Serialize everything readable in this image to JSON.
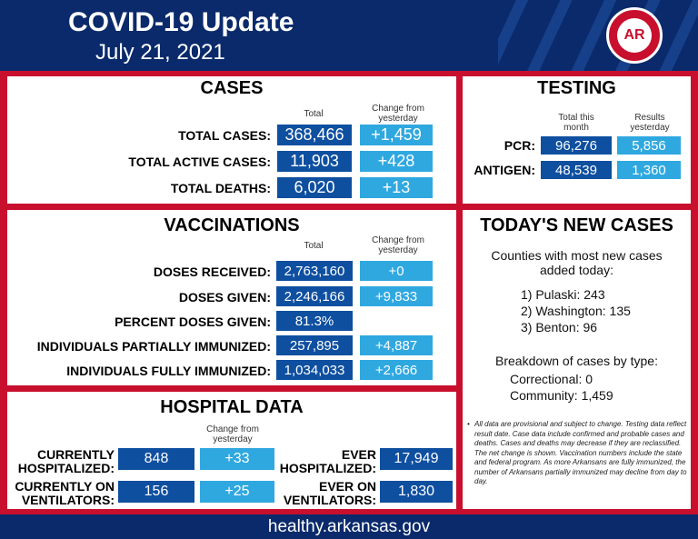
{
  "header": {
    "title": "COVID-19 Update",
    "date": "July 21, 2021",
    "logo_text": "AR"
  },
  "cases": {
    "heading": "CASES",
    "col_total": "Total",
    "col_change": "Change from yesterday",
    "rows": [
      {
        "label": "TOTAL CASES:",
        "total": "368,466",
        "change": "+1,459"
      },
      {
        "label": "TOTAL ACTIVE CASES:",
        "total": "11,903",
        "change": "+428"
      },
      {
        "label": "TOTAL DEATHS:",
        "total": "6,020",
        "change": "+13"
      }
    ]
  },
  "testing": {
    "heading": "TESTING",
    "col_total": "Total this month",
    "col_results": "Results yesterday",
    "rows": [
      {
        "label": "PCR:",
        "total": "96,276",
        "results": "5,856"
      },
      {
        "label": "ANTIGEN:",
        "total": "48,539",
        "results": "1,360"
      }
    ]
  },
  "vaccinations": {
    "heading": "VACCINATIONS",
    "col_total": "Total",
    "col_change": "Change from yesterday",
    "rows": [
      {
        "label": "DOSES RECEIVED:",
        "total": "2,763,160",
        "change": "+0"
      },
      {
        "label": "DOSES GIVEN:",
        "total": "2,246,166",
        "change": "+9,833"
      },
      {
        "label": "PERCENT DOSES GIVEN:",
        "total": "81.3%",
        "change": ""
      },
      {
        "label": "INDIVIDUALS PARTIALLY IMMUNIZED:",
        "total": "257,895",
        "change": "+4,887"
      },
      {
        "label": "INDIVIDUALS FULLY IMMUNIZED:",
        "total": "1,034,033",
        "change": "+2,666"
      }
    ]
  },
  "hospital": {
    "heading": "HOSPITAL DATA",
    "col_change": "Change from yesterday",
    "hosp_label_1": "CURRENTLY",
    "hosp_label_2": "HOSPITALIZED:",
    "hosp_value": "848",
    "hosp_change": "+33",
    "vent_label_1": "CURRENTLY ON",
    "vent_label_2": "VENTILATORS:",
    "vent_value": "156",
    "vent_change": "+25",
    "ever_hosp_label_1": "EVER",
    "ever_hosp_label_2": "HOSPITALIZED:",
    "ever_hosp_value": "17,949",
    "ever_vent_label_1": "EVER ON",
    "ever_vent_label_2": "VENTILATORS:",
    "ever_vent_value": "1,830"
  },
  "new_cases": {
    "heading": "TODAY'S NEW CASES",
    "counties_intro_1": "Counties with most new cases",
    "counties_intro_2": "added today:",
    "counties": [
      "1) Pulaski: 243",
      "2) Washington: 135",
      "3) Benton: 96"
    ],
    "breakdown_title": "Breakdown of cases by type:",
    "correctional": "Correctional: 0",
    "community": "Community: 1,459"
  },
  "notes": "All data are provisional and subject to change. Testing data reflect result date. Case data include confirmed and probable cases and deaths. Cases and deaths may decrease if they are reclassified. The net change is shown. Vaccination numbers include the state and federal program. As more Arkansans are fully immunized, the number of Arkansans partially immunized may decline from day to day.",
  "footer": {
    "url": "healthy.arkansas.gov"
  },
  "colors": {
    "navy": "#0a2a6b",
    "dark_box": "#0e4fa0",
    "light_box": "#2fa8e0",
    "red": "#c8102e"
  }
}
